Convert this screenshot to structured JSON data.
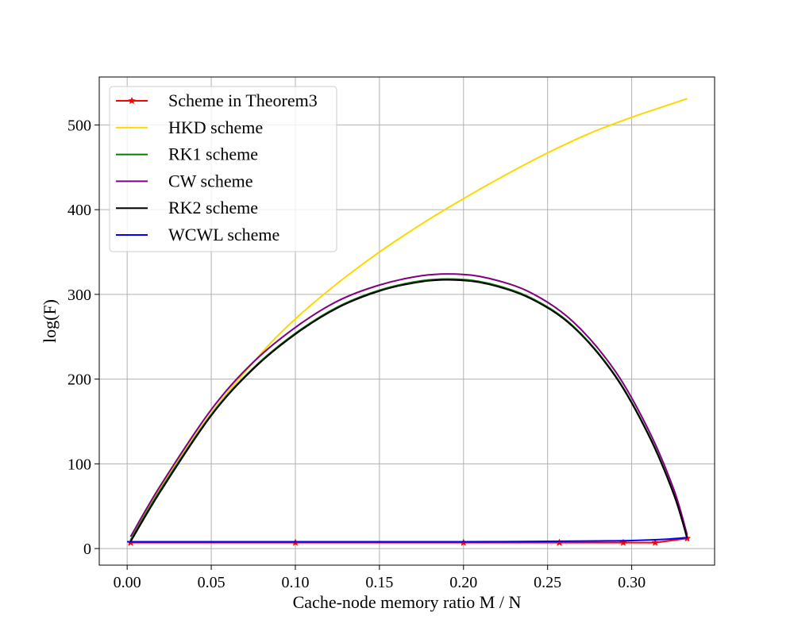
{
  "chart_data": {
    "type": "line",
    "xlabel": "Cache-node memory ratio M / N",
    "ylabel": "log(F)",
    "xlim": [
      -0.0166,
      0.3493
    ],
    "ylim": [
      -19.6,
      556.6
    ],
    "xticks": [
      0.0,
      0.05,
      0.1,
      0.15,
      0.2,
      0.25,
      0.3
    ],
    "xtick_labels": [
      "0.00",
      "0.05",
      "0.10",
      "0.15",
      "0.20",
      "0.25",
      "0.30"
    ],
    "yticks": [
      0,
      100,
      200,
      300,
      400,
      500
    ],
    "ytick_labels": [
      "0",
      "100",
      "200",
      "300",
      "400",
      "500"
    ],
    "grid": true,
    "legend_position": "upper-left",
    "series": [
      {
        "name": "Scheme in Theorem3",
        "color": "#ff0000",
        "marker": "star",
        "x": [
          0.002,
          0.1,
          0.2,
          0.257,
          0.295,
          0.314,
          0.333
        ],
        "y": [
          7,
          7,
          7,
          7,
          7,
          7,
          12
        ]
      },
      {
        "name": "HKD scheme",
        "color": "#ffd700",
        "marker": "none",
        "x": [
          0.002,
          0.02,
          0.05,
          0.08,
          0.1,
          0.125,
          0.15,
          0.175,
          0.2,
          0.225,
          0.25,
          0.275,
          0.3,
          0.333
        ],
        "y": [
          10,
          72,
          160,
          231,
          271,
          313,
          350,
          383,
          413,
          441,
          467,
          490,
          509,
          531
        ]
      },
      {
        "name": "RK1 scheme",
        "color": "#008000",
        "marker": "none",
        "x": [
          0.002,
          0.02,
          0.05,
          0.075,
          0.1,
          0.125,
          0.15,
          0.175,
          0.195,
          0.215,
          0.24,
          0.265,
          0.29,
          0.31,
          0.325,
          0.333
        ],
        "y": [
          10,
          70,
          158,
          213,
          254,
          285,
          305,
          316,
          318,
          313,
          296,
          263,
          205,
          135,
          65,
          12
        ]
      },
      {
        "name": "CW scheme",
        "color": "#800080",
        "marker": "none",
        "x": [
          0.002,
          0.02,
          0.05,
          0.075,
          0.1,
          0.125,
          0.15,
          0.175,
          0.195,
          0.215,
          0.24,
          0.265,
          0.29,
          0.31,
          0.325,
          0.333
        ],
        "y": [
          14,
          75,
          164,
          220,
          261,
          292,
          311,
          322,
          324,
          319,
          302,
          268,
          210,
          140,
          70,
          16
        ]
      },
      {
        "name": "RK2 scheme",
        "color": "#000000",
        "marker": "none",
        "x": [
          0.002,
          0.02,
          0.05,
          0.075,
          0.1,
          0.125,
          0.15,
          0.175,
          0.195,
          0.215,
          0.24,
          0.265,
          0.29,
          0.31,
          0.325,
          0.333
        ],
        "y": [
          8,
          68,
          157,
          212,
          253,
          284,
          304,
          315,
          317,
          312,
          295,
          262,
          204,
          134,
          64,
          12
        ]
      },
      {
        "name": "WCWL scheme",
        "color": "#0000ff",
        "marker": "none",
        "x": [
          0.0,
          0.05,
          0.1,
          0.15,
          0.2,
          0.25,
          0.28,
          0.3,
          0.32,
          0.333
        ],
        "y": [
          8,
          8,
          8,
          8,
          8,
          8.5,
          9,
          9.5,
          11,
          13
        ]
      }
    ]
  }
}
